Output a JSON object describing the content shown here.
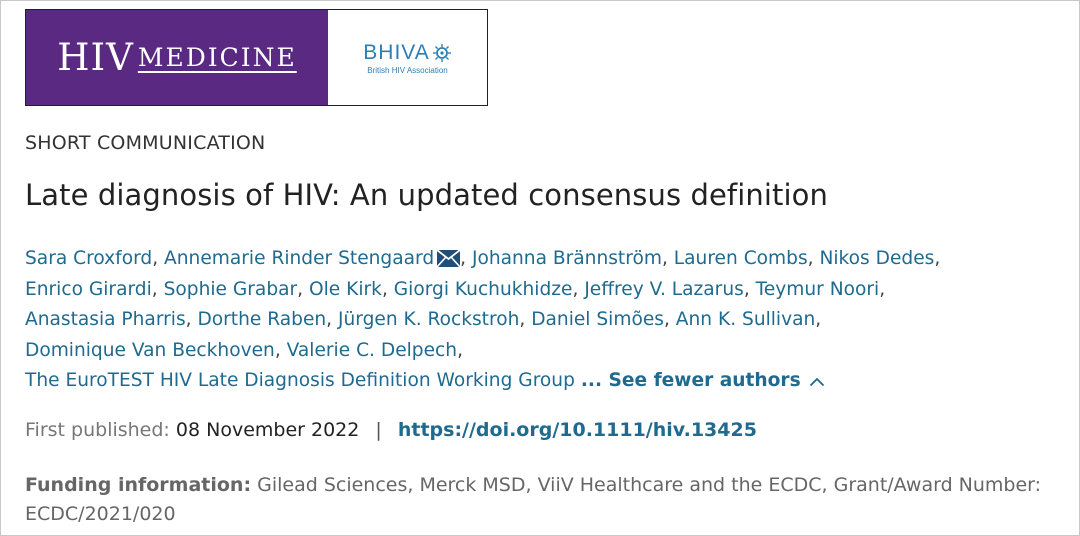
{
  "logo": {
    "journal_part1": "HIV",
    "journal_part2": "MEDICINE",
    "partner_name": "BHIVA",
    "partner_subtitle": "British HIV Association",
    "brand_color": "#5a2a82",
    "partner_color": "#2b7fb8"
  },
  "article": {
    "type": "SHORT COMMUNICATION",
    "title": "Late diagnosis of HIV: An updated consensus definition",
    "authors": [
      "Sara Croxford",
      "Annemarie Rinder Stengaard",
      "Johanna Brännström",
      "Lauren Combs",
      "Nikos Dedes",
      "Enrico Girardi",
      "Sophie Grabar",
      "Ole Kirk",
      "Giorgi Kuchukhidze",
      "Jeffrey V. Lazarus",
      "Teymur Noori",
      "Anastasia Pharris",
      "Dorthe Raben",
      "Jürgen K. Rockstroh",
      "Daniel Simões",
      "Ann K. Sullivan",
      "Dominique Van Beckhoven",
      "Valerie C. Delpech",
      "The EuroTEST HIV Late Diagnosis Definition Working Group"
    ],
    "corresponding_icon": "envelope-icon",
    "see_fewer": "... See fewer authors",
    "first_published_label": "First published:",
    "first_published_date": "08 November 2022",
    "separator": "|",
    "doi": "https://doi.org/10.1111/hiv.13425",
    "funding_label": "Funding information:",
    "funding_text": "Gilead Sciences, Merck MSD, ViiV Healthcare and the ECDC, Grant/Award Number: ECDC/2021/020",
    "link_color": "#1f6a8e"
  }
}
